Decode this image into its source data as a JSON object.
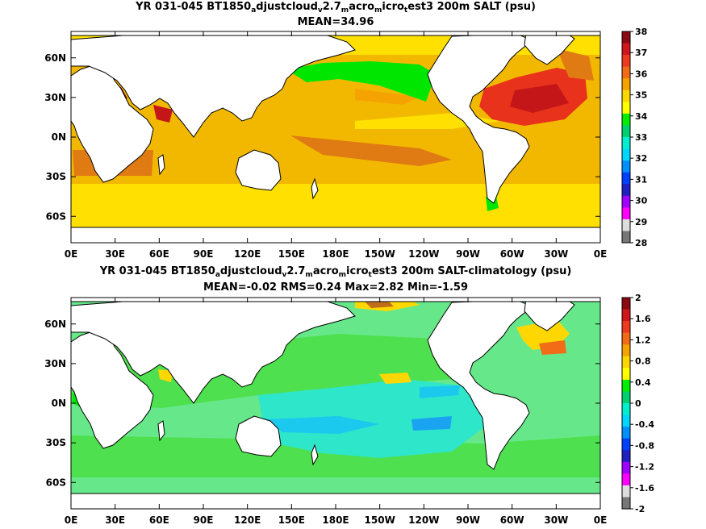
{
  "panels": [
    {
      "title": {
        "prefix": "YR 031-045 BT1850",
        "s1": "a",
        "m1": "djustcloud",
        "s2": "v",
        "m2": "2.7",
        "s3": "m",
        "m3": "acro",
        "s4": "m",
        "m4": "icro",
        "s5": "t",
        "suffix": "est3 200m SALT (psu)"
      },
      "stats": "MEAN=34.96",
      "background": "#f2b800",
      "colorbar": {
        "labels": [
          "38",
          "37",
          "36",
          "35",
          "34",
          "33",
          "32",
          "31",
          "30",
          "29",
          "28"
        ],
        "colors": [
          "#8c0a14",
          "#d0171b",
          "#ee3a1e",
          "#f26b17",
          "#f5a300",
          "#ffd700",
          "#ffff00",
          "#00ee00",
          "#00d070",
          "#00efcf",
          "#00d7ff",
          "#0090ff",
          "#0040ff",
          "#2020c0",
          "#a000ff",
          "#ff00ff",
          "#dddddd",
          "#777777"
        ]
      }
    },
    {
      "title": {
        "prefix": "YR 031-045 BT1850",
        "s1": "a",
        "m1": "djustcloud",
        "s2": "v",
        "m2": "2.7",
        "s3": "m",
        "m3": "acro",
        "s4": "m",
        "m4": "icro",
        "s5": "t",
        "suffix": "est3 200m SALT-climatology (psu)"
      },
      "stats": "MEAN=-0.02   RMS=0.24   Max=2.82   Min=-1.59",
      "background": "#66e88a",
      "colorbar": {
        "labels": [
          "2",
          "1.6",
          "1.2",
          "0.8",
          "0.4",
          "0",
          "-0.4",
          "-0.8",
          "-1.2",
          "-1.6",
          "-2"
        ],
        "colors": [
          "#8c0a14",
          "#d0171b",
          "#ee3a1e",
          "#f26b17",
          "#f5a300",
          "#ffd700",
          "#ffff00",
          "#00ee00",
          "#00d070",
          "#00efcf",
          "#00d7ff",
          "#0090ff",
          "#0040ff",
          "#2020c0",
          "#a000ff",
          "#ff00ff",
          "#dddddd",
          "#777777"
        ]
      }
    }
  ],
  "axes": {
    "x_labels": [
      "0E",
      "30E",
      "60E",
      "90E",
      "120E",
      "150E",
      "180E",
      "150W",
      "120W",
      "90W",
      "60W",
      "30W",
      "0E"
    ],
    "y_labels": [
      "60N",
      "30N",
      "0N",
      "30S",
      "60S"
    ]
  }
}
